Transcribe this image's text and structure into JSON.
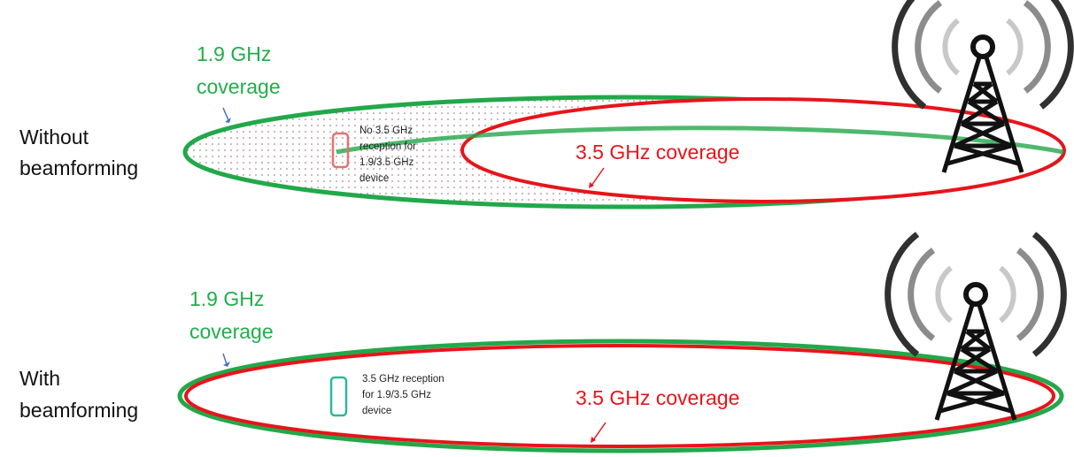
{
  "panels": [
    {
      "row_label": [
        "Without",
        "beamforming"
      ],
      "green_label": [
        "1.9 GHz",
        "coverage"
      ],
      "red_label": "3.5 GHz coverage",
      "device_note": [
        "No 3.5 GHz",
        "reception for",
        "1.9/3.5 GHz",
        "device"
      ]
    },
    {
      "row_label": [
        "With",
        "beamforming"
      ],
      "green_label": [
        "1.9 GHz",
        "coverage"
      ],
      "red_label": "3.5 GHz coverage",
      "device_note": [
        "3.5 GHz reception",
        "for 1.9/3.5 GHz",
        "device"
      ]
    }
  ]
}
